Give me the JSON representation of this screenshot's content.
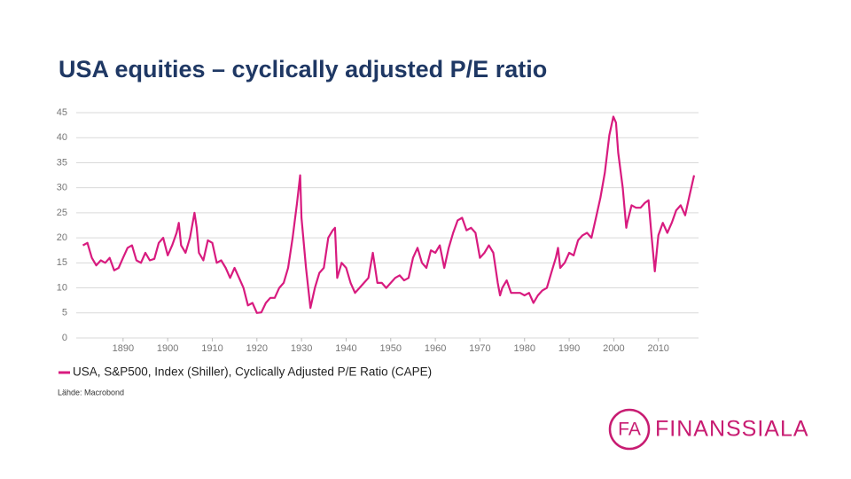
{
  "chart_data": {
    "type": "line",
    "title": "USA equities – cyclically adjusted P/E ratio",
    "source": "Lähde: Macrobond",
    "x": [
      1881,
      1882,
      1883,
      1884,
      1885,
      1886,
      1887,
      1888,
      1889,
      1890,
      1891,
      1892,
      1893,
      1894,
      1895,
      1896,
      1897,
      1898,
      1899,
      1900,
      1901,
      1902,
      1902.5,
      1903,
      1904,
      1905,
      1906,
      1906.5,
      1907,
      1908,
      1909,
      1910,
      1911,
      1912,
      1913,
      1914,
      1915,
      1916,
      1917,
      1918,
      1919,
      1920,
      1921,
      1922,
      1923,
      1924,
      1925,
      1926,
      1927,
      1928,
      1929,
      1929.7,
      1930,
      1931,
      1932,
      1933,
      1934,
      1935,
      1936,
      1937,
      1937.5,
      1938,
      1939,
      1940,
      1941,
      1942,
      1943,
      1944,
      1945,
      1946,
      1946.5,
      1947,
      1948,
      1949,
      1950,
      1951,
      1952,
      1953,
      1954,
      1955,
      1956,
      1957,
      1958,
      1959,
      1960,
      1961,
      1962,
      1963,
      1964,
      1965,
      1966,
      1967,
      1968,
      1969,
      1970,
      1971,
      1972,
      1973,
      1974,
      1974.5,
      1975,
      1976,
      1977,
      1978,
      1979,
      1980,
      1981,
      1982,
      1983,
      1984,
      1985,
      1986,
      1987,
      1987.5,
      1988,
      1989,
      1990,
      1991,
      1992,
      1993,
      1994,
      1995,
      1996,
      1997,
      1998,
      1999,
      1999.9,
      2000.5,
      2001,
      2002,
      2002.8,
      2003,
      2004,
      2005,
      2006,
      2007,
      2007.8,
      2008.5,
      2009.2,
      2010,
      2011,
      2012,
      2013,
      2014,
      2015,
      2016,
      2017,
      2018
    ],
    "series": [
      {
        "name": "USA, S&P500, Index (Shiller), Cyclically Adjusted P/E Ratio (CAPE)",
        "color": "#d81b7f",
        "values": [
          18.5,
          19,
          16,
          14.5,
          15.5,
          15,
          16,
          13.5,
          14,
          16,
          18,
          18.5,
          15.5,
          15,
          17,
          15.5,
          15.8,
          19,
          20,
          16.5,
          18.5,
          21,
          23,
          18.5,
          17,
          20,
          25,
          22,
          17,
          15.5,
          19.5,
          19,
          15,
          15.5,
          14,
          12,
          14,
          12,
          10,
          6.5,
          7,
          5,
          5.1,
          7,
          8,
          8,
          10,
          11,
          14,
          20,
          27,
          32.5,
          24,
          14,
          6,
          10,
          13,
          14,
          20,
          21.5,
          22,
          12,
          15,
          14,
          11,
          9,
          10,
          11,
          12,
          17,
          14,
          11,
          11,
          10,
          11,
          12,
          12.5,
          11.5,
          12,
          16,
          18,
          15,
          14,
          17.5,
          17,
          18.5,
          14,
          18,
          21,
          23.5,
          24,
          21.5,
          22,
          21,
          16,
          17,
          18.5,
          17,
          11,
          8.5,
          10,
          11.5,
          9,
          9,
          9,
          8.5,
          9,
          7,
          8.5,
          9.5,
          10,
          13,
          16,
          18,
          14,
          15,
          17,
          16.5,
          19.5,
          20.5,
          21,
          20,
          24,
          28,
          33,
          40.5,
          44.2,
          43,
          37,
          30,
          22,
          23,
          26.5,
          26,
          26,
          27,
          27.5,
          20,
          13.3,
          20.5,
          23,
          21,
          23,
          25.5,
          26.5,
          24.5,
          28.5,
          32.5
        ]
      }
    ],
    "xlim": [
      1879.5,
      2019
    ],
    "ylim": [
      0,
      45
    ],
    "xticks": [
      1890,
      1900,
      1910,
      1920,
      1930,
      1940,
      1950,
      1960,
      1970,
      1980,
      1990,
      2000,
      2010
    ],
    "yticks": [
      0,
      5,
      10,
      15,
      20,
      25,
      30,
      35,
      40,
      45
    ],
    "grid": true
  },
  "logo": {
    "mark": "FA",
    "text": "FINANSSIALA"
  }
}
